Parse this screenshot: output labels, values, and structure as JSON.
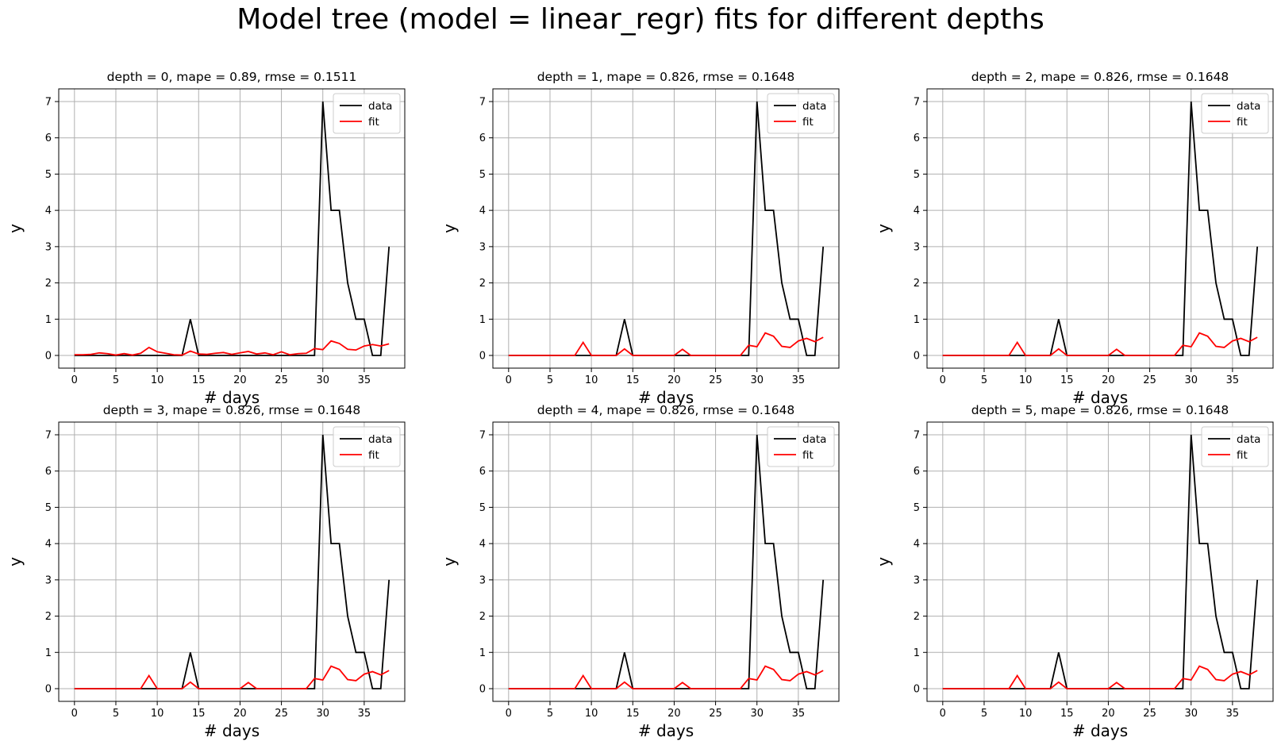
{
  "figure": {
    "suptitle": "Model tree (model = linear_regr) fits for different depths"
  },
  "colors": {
    "data": "#000000",
    "fit": "#ff0000"
  },
  "chart_data": [
    {
      "type": "line",
      "title": "depth = 0, mape = 0.89, rmse = 0.1511",
      "xlabel": "# days",
      "ylabel": "y",
      "xlim": [
        -1.9,
        39.9
      ],
      "ylim": [
        -0.35,
        7.35
      ],
      "xticks": [
        0,
        5,
        10,
        15,
        20,
        25,
        30,
        35
      ],
      "yticks": [
        0,
        1,
        2,
        3,
        4,
        5,
        6,
        7
      ],
      "grid": true,
      "legend_position": "top-right",
      "x": [
        0,
        1,
        2,
        3,
        4,
        5,
        6,
        7,
        8,
        9,
        10,
        11,
        12,
        13,
        14,
        15,
        16,
        17,
        18,
        19,
        20,
        21,
        22,
        23,
        24,
        25,
        26,
        27,
        28,
        29,
        30,
        31,
        32,
        33,
        34,
        35,
        36,
        37,
        38
      ],
      "series": [
        {
          "name": "data",
          "color": "#000000",
          "values": [
            0,
            0,
            0,
            0,
            0,
            0,
            0,
            0,
            0,
            0,
            0,
            0,
            0,
            0,
            1,
            0,
            0,
            0,
            0,
            0,
            0,
            0,
            0,
            0,
            0,
            0,
            0,
            0,
            0,
            0,
            7,
            4,
            4,
            2,
            1,
            1,
            0,
            0,
            3
          ]
        },
        {
          "name": "fit",
          "color": "#ff0000",
          "values": [
            0.02,
            0.02,
            0.03,
            0.07,
            0.05,
            0.01,
            0.05,
            0.01,
            0.06,
            0.22,
            0.1,
            0.06,
            0.02,
            0.01,
            0.12,
            0.04,
            0.03,
            0.06,
            0.08,
            0.03,
            0.07,
            0.11,
            0.04,
            0.07,
            0.02,
            0.1,
            0.02,
            0.05,
            0.06,
            0.19,
            0.16,
            0.4,
            0.33,
            0.17,
            0.15,
            0.26,
            0.3,
            0.26,
            0.32
          ]
        }
      ]
    },
    {
      "type": "line",
      "title": "depth = 1, mape = 0.826, rmse = 0.1648",
      "xlabel": "# days",
      "ylabel": "y",
      "xlim": [
        -1.9,
        39.9
      ],
      "ylim": [
        -0.35,
        7.35
      ],
      "xticks": [
        0,
        5,
        10,
        15,
        20,
        25,
        30,
        35
      ],
      "yticks": [
        0,
        1,
        2,
        3,
        4,
        5,
        6,
        7
      ],
      "grid": true,
      "legend_position": "top-right",
      "x": [
        0,
        1,
        2,
        3,
        4,
        5,
        6,
        7,
        8,
        9,
        10,
        11,
        12,
        13,
        14,
        15,
        16,
        17,
        18,
        19,
        20,
        21,
        22,
        23,
        24,
        25,
        26,
        27,
        28,
        29,
        30,
        31,
        32,
        33,
        34,
        35,
        36,
        37,
        38
      ],
      "series": [
        {
          "name": "data",
          "color": "#000000",
          "values": [
            0,
            0,
            0,
            0,
            0,
            0,
            0,
            0,
            0,
            0,
            0,
            0,
            0,
            0,
            1,
            0,
            0,
            0,
            0,
            0,
            0,
            0,
            0,
            0,
            0,
            0,
            0,
            0,
            0,
            0,
            7,
            4,
            4,
            2,
            1,
            1,
            0,
            0,
            3
          ]
        },
        {
          "name": "fit",
          "color": "#ff0000",
          "values": [
            0,
            0,
            0,
            0,
            0,
            0,
            0,
            0,
            0,
            0.36,
            0,
            0,
            0,
            0,
            0.18,
            0,
            0,
            0,
            0,
            0,
            0,
            0.17,
            0,
            0,
            0,
            0,
            0,
            0,
            0,
            0.28,
            0.24,
            0.62,
            0.53,
            0.25,
            0.22,
            0.4,
            0.47,
            0.38,
            0.5
          ]
        }
      ]
    },
    {
      "type": "line",
      "title": "depth = 2, mape = 0.826, rmse = 0.1648",
      "xlabel": "# days",
      "ylabel": "y",
      "xlim": [
        -1.9,
        39.9
      ],
      "ylim": [
        -0.35,
        7.35
      ],
      "xticks": [
        0,
        5,
        10,
        15,
        20,
        25,
        30,
        35
      ],
      "yticks": [
        0,
        1,
        2,
        3,
        4,
        5,
        6,
        7
      ],
      "grid": true,
      "legend_position": "top-right",
      "x": [
        0,
        1,
        2,
        3,
        4,
        5,
        6,
        7,
        8,
        9,
        10,
        11,
        12,
        13,
        14,
        15,
        16,
        17,
        18,
        19,
        20,
        21,
        22,
        23,
        24,
        25,
        26,
        27,
        28,
        29,
        30,
        31,
        32,
        33,
        34,
        35,
        36,
        37,
        38
      ],
      "series": [
        {
          "name": "data",
          "color": "#000000",
          "values": [
            0,
            0,
            0,
            0,
            0,
            0,
            0,
            0,
            0,
            0,
            0,
            0,
            0,
            0,
            1,
            0,
            0,
            0,
            0,
            0,
            0,
            0,
            0,
            0,
            0,
            0,
            0,
            0,
            0,
            0,
            7,
            4,
            4,
            2,
            1,
            1,
            0,
            0,
            3
          ]
        },
        {
          "name": "fit",
          "color": "#ff0000",
          "values": [
            0,
            0,
            0,
            0,
            0,
            0,
            0,
            0,
            0,
            0.36,
            0,
            0,
            0,
            0,
            0.18,
            0,
            0,
            0,
            0,
            0,
            0,
            0.17,
            0,
            0,
            0,
            0,
            0,
            0,
            0,
            0.28,
            0.24,
            0.62,
            0.53,
            0.25,
            0.22,
            0.4,
            0.47,
            0.38,
            0.5
          ]
        }
      ]
    },
    {
      "type": "line",
      "title": "depth = 3, mape = 0.826, rmse = 0.1648",
      "xlabel": "# days",
      "ylabel": "y",
      "xlim": [
        -1.9,
        39.9
      ],
      "ylim": [
        -0.35,
        7.35
      ],
      "xticks": [
        0,
        5,
        10,
        15,
        20,
        25,
        30,
        35
      ],
      "yticks": [
        0,
        1,
        2,
        3,
        4,
        5,
        6,
        7
      ],
      "grid": true,
      "legend_position": "top-right",
      "x": [
        0,
        1,
        2,
        3,
        4,
        5,
        6,
        7,
        8,
        9,
        10,
        11,
        12,
        13,
        14,
        15,
        16,
        17,
        18,
        19,
        20,
        21,
        22,
        23,
        24,
        25,
        26,
        27,
        28,
        29,
        30,
        31,
        32,
        33,
        34,
        35,
        36,
        37,
        38
      ],
      "series": [
        {
          "name": "data",
          "color": "#000000",
          "values": [
            0,
            0,
            0,
            0,
            0,
            0,
            0,
            0,
            0,
            0,
            0,
            0,
            0,
            0,
            1,
            0,
            0,
            0,
            0,
            0,
            0,
            0,
            0,
            0,
            0,
            0,
            0,
            0,
            0,
            0,
            7,
            4,
            4,
            2,
            1,
            1,
            0,
            0,
            3
          ]
        },
        {
          "name": "fit",
          "color": "#ff0000",
          "values": [
            0,
            0,
            0,
            0,
            0,
            0,
            0,
            0,
            0,
            0.36,
            0,
            0,
            0,
            0,
            0.18,
            0,
            0,
            0,
            0,
            0,
            0,
            0.17,
            0,
            0,
            0,
            0,
            0,
            0,
            0,
            0.28,
            0.24,
            0.62,
            0.53,
            0.25,
            0.22,
            0.4,
            0.47,
            0.38,
            0.5
          ]
        }
      ]
    },
    {
      "type": "line",
      "title": "depth = 4, mape = 0.826, rmse = 0.1648",
      "xlabel": "# days",
      "ylabel": "y",
      "xlim": [
        -1.9,
        39.9
      ],
      "ylim": [
        -0.35,
        7.35
      ],
      "xticks": [
        0,
        5,
        10,
        15,
        20,
        25,
        30,
        35
      ],
      "yticks": [
        0,
        1,
        2,
        3,
        4,
        5,
        6,
        7
      ],
      "grid": true,
      "legend_position": "top-right",
      "x": [
        0,
        1,
        2,
        3,
        4,
        5,
        6,
        7,
        8,
        9,
        10,
        11,
        12,
        13,
        14,
        15,
        16,
        17,
        18,
        19,
        20,
        21,
        22,
        23,
        24,
        25,
        26,
        27,
        28,
        29,
        30,
        31,
        32,
        33,
        34,
        35,
        36,
        37,
        38
      ],
      "series": [
        {
          "name": "data",
          "color": "#000000",
          "values": [
            0,
            0,
            0,
            0,
            0,
            0,
            0,
            0,
            0,
            0,
            0,
            0,
            0,
            0,
            1,
            0,
            0,
            0,
            0,
            0,
            0,
            0,
            0,
            0,
            0,
            0,
            0,
            0,
            0,
            0,
            7,
            4,
            4,
            2,
            1,
            1,
            0,
            0,
            3
          ]
        },
        {
          "name": "fit",
          "color": "#ff0000",
          "values": [
            0,
            0,
            0,
            0,
            0,
            0,
            0,
            0,
            0,
            0.36,
            0,
            0,
            0,
            0,
            0.18,
            0,
            0,
            0,
            0,
            0,
            0,
            0.17,
            0,
            0,
            0,
            0,
            0,
            0,
            0,
            0.28,
            0.24,
            0.62,
            0.53,
            0.25,
            0.22,
            0.4,
            0.47,
            0.38,
            0.5
          ]
        }
      ]
    },
    {
      "type": "line",
      "title": "depth = 5, mape = 0.826, rmse = 0.1648",
      "xlabel": "# days",
      "ylabel": "y",
      "xlim": [
        -1.9,
        39.9
      ],
      "ylim": [
        -0.35,
        7.35
      ],
      "xticks": [
        0,
        5,
        10,
        15,
        20,
        25,
        30,
        35
      ],
      "yticks": [
        0,
        1,
        2,
        3,
        4,
        5,
        6,
        7
      ],
      "grid": true,
      "legend_position": "top-right",
      "x": [
        0,
        1,
        2,
        3,
        4,
        5,
        6,
        7,
        8,
        9,
        10,
        11,
        12,
        13,
        14,
        15,
        16,
        17,
        18,
        19,
        20,
        21,
        22,
        23,
        24,
        25,
        26,
        27,
        28,
        29,
        30,
        31,
        32,
        33,
        34,
        35,
        36,
        37,
        38
      ],
      "series": [
        {
          "name": "data",
          "color": "#000000",
          "values": [
            0,
            0,
            0,
            0,
            0,
            0,
            0,
            0,
            0,
            0,
            0,
            0,
            0,
            0,
            1,
            0,
            0,
            0,
            0,
            0,
            0,
            0,
            0,
            0,
            0,
            0,
            0,
            0,
            0,
            0,
            7,
            4,
            4,
            2,
            1,
            1,
            0,
            0,
            3
          ]
        },
        {
          "name": "fit",
          "color": "#ff0000",
          "values": [
            0,
            0,
            0,
            0,
            0,
            0,
            0,
            0,
            0,
            0.36,
            0,
            0,
            0,
            0,
            0.18,
            0,
            0,
            0,
            0,
            0,
            0,
            0.17,
            0,
            0,
            0,
            0,
            0,
            0,
            0,
            0.28,
            0.24,
            0.62,
            0.53,
            0.25,
            0.22,
            0.4,
            0.47,
            0.38,
            0.5
          ]
        }
      ]
    }
  ]
}
